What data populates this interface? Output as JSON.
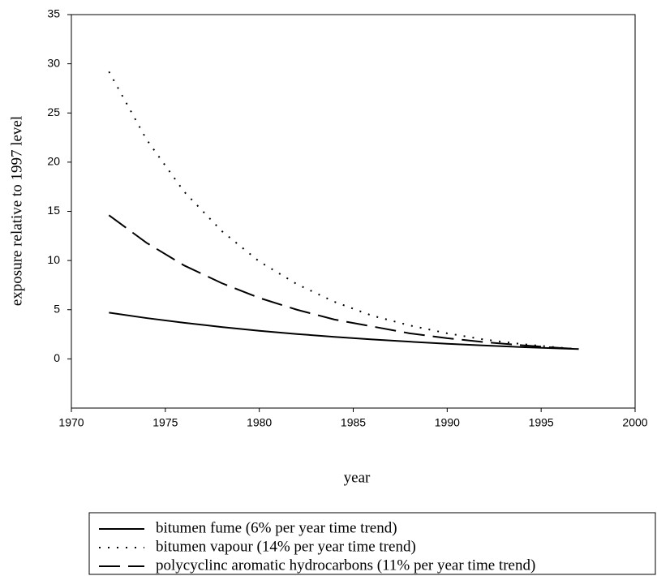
{
  "chart_data": {
    "type": "line",
    "x_label": "year",
    "y_label": "exposure relative to 1997 level",
    "x": [
      1972,
      1974,
      1976,
      1978,
      1980,
      1982,
      1984,
      1986,
      1988,
      1990,
      1992,
      1994,
      1996,
      1997
    ],
    "series": [
      {
        "name": "bitumen fume (6% per year time trend)",
        "color": "#000000",
        "style": "solid",
        "values": [
          4.7,
          4.15,
          3.67,
          3.24,
          2.86,
          2.53,
          2.24,
          1.98,
          1.75,
          1.54,
          1.36,
          1.2,
          1.06,
          1
        ]
      },
      {
        "name": "bitumen vapour (14% per year time trend)",
        "color": "#000000",
        "style": "dotted",
        "values": [
          29.2,
          22.3,
          17.0,
          13.0,
          9.9,
          7.6,
          5.8,
          4.4,
          3.4,
          2.6,
          1.96,
          1.5,
          1.14,
          1
        ]
      },
      {
        "name": "polycyclinc aromatic hydrocarbons (11% per year time trend)",
        "color": "#000000",
        "style": "dashed",
        "values": [
          14.6,
          11.8,
          9.5,
          7.7,
          6.2,
          5.0,
          4.0,
          3.3,
          2.6,
          2.1,
          1.7,
          1.38,
          1.11,
          1
        ]
      }
    ],
    "xlim": [
      1970,
      2000
    ],
    "xticks": [
      1970,
      1975,
      1980,
      1985,
      1990,
      1995,
      2000
    ],
    "ylim": [
      -5,
      35
    ],
    "yticks": [
      0,
      5,
      10,
      15,
      20,
      25,
      30,
      35
    ],
    "grid": false,
    "legend": "bottom"
  }
}
